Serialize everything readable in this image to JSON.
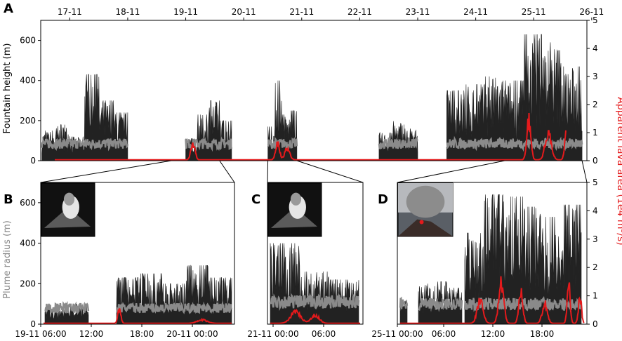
{
  "figure": {
    "panel_labels": [
      "A",
      "B",
      "C",
      "D"
    ],
    "left_axis_title_top": "Fountain height (m)",
    "left_axis_title_bottom": "Plume radius (m)",
    "right_axis_title": "Apparent lava area (1e4 m",
    "right_axis_title_sup": "3",
    "right_axis_title_end": "/s)",
    "colors": {
      "fountain": "#222222",
      "plume": "#8a8a8a",
      "lava": "#e41a1c",
      "lava_label": "#e41a1c",
      "plume_label": "#8a8a8a"
    }
  },
  "chart_data": [
    {
      "panel": "A",
      "type": "area",
      "x_ticks": [
        "17-11",
        "18-11",
        "19-11",
        "20-11",
        "21-11",
        "22-11",
        "23-11",
        "24-11",
        "25-11",
        "26-11"
      ],
      "x_range_days": [
        "17-11 00:00",
        "26-11 10:00"
      ],
      "ylabel": "Fountain height (m)",
      "ylim": [
        0,
        700
      ],
      "y_ticks": [
        0,
        200,
        400,
        600
      ],
      "y2label": "Apparent lava area (1e4 m3/s)",
      "y2lim": [
        0,
        5
      ],
      "y2_ticks": [
        0,
        1,
        2,
        3,
        4,
        5
      ],
      "series": [
        {
          "name": "Fountain height (m)",
          "color": "#222222",
          "segments": [
            {
              "start": "17-11 00:30",
              "end": "18-11 12:00",
              "peak_values": [
                150,
                180,
                120,
                430,
                300,
                240
              ]
            },
            {
              "start": "19-11 12:00",
              "end": "20-11 07:00",
              "peak_values": [
                110,
                230,
                300,
                200
              ]
            },
            {
              "start": "20-11 22:00",
              "end": "21-11 10:00",
              "peak_values": [
                170,
                400,
                230,
                250
              ]
            },
            {
              "start": "22-11 20:00",
              "end": "23-11 12:00",
              "peak_values": [
                140,
                200,
                160
              ]
            },
            {
              "start": "24-11 00:00",
              "end": "26-11 08:00",
              "peak_values": [
                350,
                380,
                420,
                400,
                630,
                590,
                470
              ]
            }
          ]
        },
        {
          "name": "Plume radius (m)",
          "color": "#8a8a8a",
          "typical_values": [
            80,
            100,
            60,
            80,
            70,
            80,
            100,
            90,
            80
          ]
        },
        {
          "name": "Apparent lava area (1e4 m3/s)",
          "color": "#e41a1c",
          "spikes": [
            {
              "at": "19-11 15:00",
              "value": 0.75
            },
            {
              "at": "21-11 02:00",
              "value": 0.7
            },
            {
              "at": "25-11 10:00",
              "value": 1.7
            },
            {
              "at": "26-11 02:00",
              "value": 1.9
            }
          ]
        }
      ]
    },
    {
      "panel": "B",
      "type": "area",
      "x_ticks": [
        "19-11 06:00",
        "12:00",
        "18:00",
        "20-11 00:00"
      ],
      "ylim": [
        0,
        700
      ],
      "y_ticks": [
        0,
        200,
        400,
        600
      ],
      "ylabel": "Plume radius (m)",
      "fountain_peak_values": [
        230,
        250,
        200,
        290,
        230
      ],
      "plume_typical": 80,
      "lava_peak": 0.6
    },
    {
      "panel": "C",
      "type": "area",
      "x_ticks": [
        "21-11 00:00",
        "06:00"
      ],
      "ylim": [
        0,
        700
      ],
      "fountain_peak_values": [
        400,
        260,
        220
      ],
      "plume_typical": 110,
      "lava_peak": 0.5
    },
    {
      "panel": "D",
      "type": "area",
      "x_ticks": [
        "25-11 00:00",
        "06:00",
        "12:00",
        "18:00"
      ],
      "ylim": [
        0,
        700
      ],
      "y2lim": [
        0,
        5
      ],
      "y2_ticks": [
        0,
        1,
        2,
        3,
        4,
        5
      ],
      "fountain_peak_values": [
        450,
        640,
        630,
        580,
        530,
        590
      ],
      "plume_typical": 100,
      "lava_peak": 1.7
    }
  ]
}
